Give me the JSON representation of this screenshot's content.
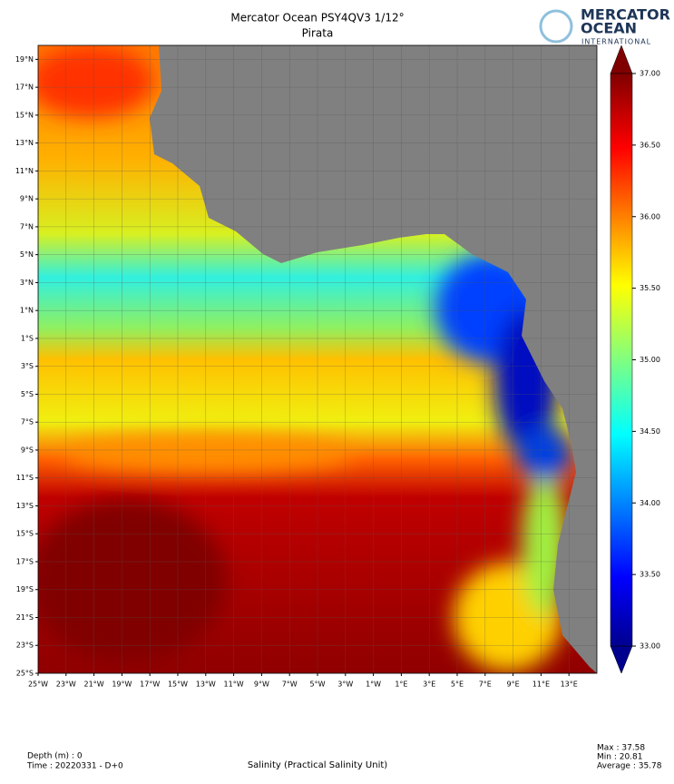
{
  "title": "Mercator Ocean PSY4QV3 1/12°",
  "subtitle": "Pirata",
  "logo": {
    "line1": "MERCATOR",
    "line2": "OCEAN",
    "line3": "INTERNATIONAL"
  },
  "map": {
    "xlim": [
      -25,
      15
    ],
    "ylim": [
      -25,
      20
    ],
    "grid": true,
    "xticks": [
      {
        "value": -25,
        "label": "25°W"
      },
      {
        "value": -23,
        "label": "23°W"
      },
      {
        "value": -21,
        "label": "21°W"
      },
      {
        "value": -19,
        "label": "19°W"
      },
      {
        "value": -17,
        "label": "17°W"
      },
      {
        "value": -15,
        "label": "15°W"
      },
      {
        "value": -13,
        "label": "13°W"
      },
      {
        "value": -11,
        "label": "11°W"
      },
      {
        "value": -9,
        "label": "9°W"
      },
      {
        "value": -7,
        "label": "7°W"
      },
      {
        "value": -5,
        "label": "5°W"
      },
      {
        "value": -3,
        "label": "3°W"
      },
      {
        "value": -1,
        "label": "1°W"
      },
      {
        "value": 1,
        "label": "1°E"
      },
      {
        "value": 3,
        "label": "3°E"
      },
      {
        "value": 5,
        "label": "5°E"
      },
      {
        "value": 7,
        "label": "7°E"
      },
      {
        "value": 9,
        "label": "9°E"
      },
      {
        "value": 11,
        "label": "11°E"
      },
      {
        "value": 13,
        "label": "13°E"
      }
    ],
    "yticks": [
      {
        "value": 19,
        "label": "19°N"
      },
      {
        "value": 17,
        "label": "17°N"
      },
      {
        "value": 15,
        "label": "15°N"
      },
      {
        "value": 13,
        "label": "13°N"
      },
      {
        "value": 11,
        "label": "11°N"
      },
      {
        "value": 9,
        "label": "9°N"
      },
      {
        "value": 7,
        "label": "7°N"
      },
      {
        "value": 5,
        "label": "5°N"
      },
      {
        "value": 3,
        "label": "3°N"
      },
      {
        "value": 1,
        "label": "1°N"
      },
      {
        "value": -1,
        "label": "1°S"
      },
      {
        "value": -3,
        "label": "3°S"
      },
      {
        "value": -5,
        "label": "5°S"
      },
      {
        "value": -7,
        "label": "7°S"
      },
      {
        "value": -9,
        "label": "9°S"
      },
      {
        "value": -11,
        "label": "11°S"
      },
      {
        "value": -13,
        "label": "13°S"
      },
      {
        "value": -15,
        "label": "15°S"
      },
      {
        "value": -17,
        "label": "17°S"
      },
      {
        "value": -19,
        "label": "19°S"
      },
      {
        "value": -21,
        "label": "21°S"
      },
      {
        "value": -23,
        "label": "23°S"
      },
      {
        "value": -25,
        "label": "25°S"
      }
    ]
  },
  "colorbar": {
    "lim": [
      33,
      37
    ],
    "ticks": [
      {
        "value": 37,
        "label": "37.00"
      },
      {
        "value": 36.5,
        "label": "36.50"
      },
      {
        "value": 36,
        "label": "36.00"
      },
      {
        "value": 35.5,
        "label": "35.50"
      },
      {
        "value": 35,
        "label": "35.00"
      },
      {
        "value": 34.5,
        "label": "34.50"
      },
      {
        "value": 34,
        "label": "34.00"
      },
      {
        "value": 33.5,
        "label": "33.50"
      },
      {
        "value": 33,
        "label": "33.00"
      }
    ]
  },
  "footer": {
    "depth": "Depth (m) : 0",
    "time": "Time : 20220331 - D+0",
    "variable": "Salinity (Practical Salinity Unit)",
    "max": "Max : 37.58",
    "min": "Min : 20.81",
    "average": "Average : 35.78"
  }
}
